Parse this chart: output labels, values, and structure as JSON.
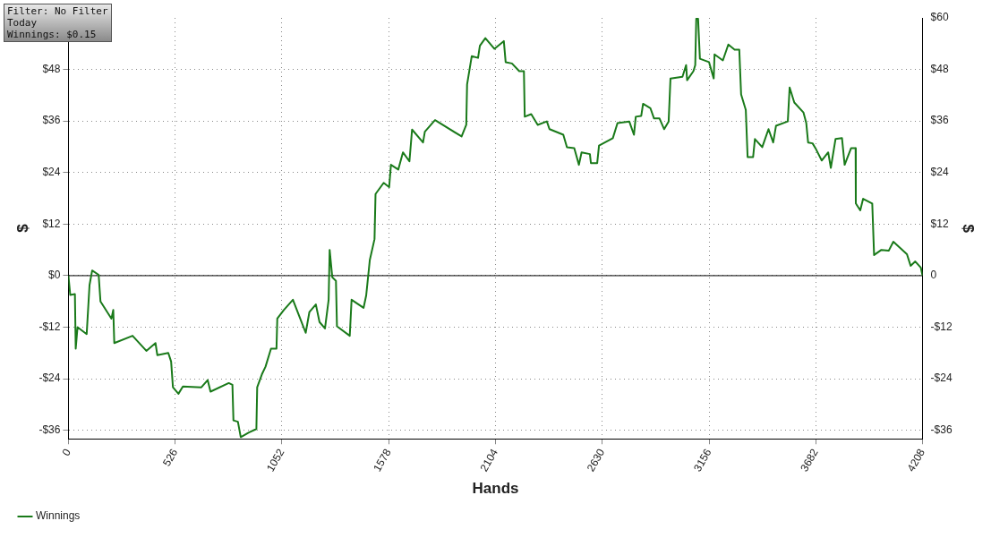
{
  "chart_data": {
    "type": "line",
    "xlabel": "Hands",
    "ylabel": "$",
    "y2label": "$",
    "annotations": [
      "Filter: No Filter",
      "Today",
      "Winnings: $0.15"
    ],
    "xlim": [
      0,
      4208
    ],
    "xticks": [
      0,
      526,
      1052,
      1578,
      2104,
      2630,
      3156,
      3682,
      4208
    ],
    "ylim": [
      -38,
      60
    ],
    "yticks": [
      {
        "value": -36,
        "label": "-$36"
      },
      {
        "value": -24,
        "label": "-$24"
      },
      {
        "value": -12,
        "label": "-$12"
      },
      {
        "value": 0,
        "label": "$0"
      },
      {
        "value": 12,
        "label": "$12"
      },
      {
        "value": 24,
        "label": "$24"
      },
      {
        "value": 36,
        "label": "$36"
      },
      {
        "value": 48,
        "label": "$48"
      }
    ],
    "y2lim": [
      -38,
      60
    ],
    "y2ticks": [
      {
        "value": -36,
        "label": "-$36"
      },
      {
        "value": -24,
        "label": "-$24"
      },
      {
        "value": -12,
        "label": "-$12"
      },
      {
        "value": 0,
        "label": "0"
      },
      {
        "value": 12,
        "label": "$12"
      },
      {
        "value": 24,
        "label": "$24"
      },
      {
        "value": 36,
        "label": "$36"
      },
      {
        "value": 48,
        "label": "$48"
      },
      {
        "value": 60,
        "label": "$60"
      }
    ],
    "grid": true,
    "legend": "bottom left",
    "marker": "none",
    "line_style": "solid",
    "ref_lines": [
      {
        "axis": "y",
        "value": 0,
        "color": "#000000"
      }
    ],
    "series": [
      {
        "name": "Winnings",
        "color": "#1a7a1a",
        "x": [
          0,
          5,
          9,
          32,
          36,
          45,
          90,
          104,
          117,
          149,
          158,
          212,
          221,
          226,
          316,
          384,
          429,
          438,
          492,
          506,
          515,
          542,
          564,
          655,
          686,
          700,
          790,
          808,
          813,
          835,
          849,
          889,
          926,
          930,
          953,
          971,
          998,
          1025,
          1029,
          1061,
          1106,
          1138,
          1169,
          1187,
          1219,
          1237,
          1264,
          1282,
          1287,
          1300,
          1318,
          1323,
          1386,
          1395,
          1454,
          1467,
          1485,
          1508,
          1513,
          1553,
          1580,
          1589,
          1625,
          1648,
          1680,
          1693,
          1747,
          1756,
          1806,
          1937,
          1960,
          1964,
          1987,
          2018,
          2027,
          2054,
          2099,
          2145,
          2154,
          2185,
          2221,
          2244,
          2248,
          2280,
          2312,
          2357,
          2370,
          2438,
          2456,
          2492,
          2515,
          2528,
          2569,
          2574,
          2605,
          2614,
          2682,
          2705,
          2763,
          2786,
          2795,
          2822,
          2831,
          2867,
          2885,
          2912,
          2935,
          2957,
          2966,
          3025,
          3043,
          3048,
          3079,
          3088,
          3093,
          3102,
          3111,
          3156,
          3179,
          3183,
          3224,
          3251,
          3282,
          3305,
          3314,
          3337,
          3346,
          3373,
          3382,
          3418,
          3449,
          3472,
          3486,
          3544,
          3553,
          3576,
          3621,
          3635,
          3644,
          3666,
          3680,
          3711,
          3743,
          3756,
          3779,
          3811,
          3824,
          3856,
          3878,
          3879,
          3901,
          3915,
          3960,
          3969,
          4005,
          4041,
          4064,
          4131,
          4149,
          4172,
          4199,
          4208
        ],
        "values": [
          0,
          -2.5,
          -4.5,
          -4.3,
          -17,
          -12,
          -13.6,
          -2.2,
          1.2,
          0.2,
          -6,
          -10,
          -8,
          -15.7,
          -14,
          -17.5,
          -15.7,
          -18.5,
          -18,
          -20,
          -26,
          -27.5,
          -25.8,
          -26,
          -24.3,
          -27,
          -25,
          -25.4,
          -33.7,
          -34,
          -37.6,
          -36.5,
          -35.7,
          -26,
          -23,
          -21.2,
          -17,
          -17,
          -10,
          -8,
          -5.6,
          -9.5,
          -13.3,
          -8.5,
          -6.7,
          -10.8,
          -12.3,
          -5.6,
          6,
          -0.4,
          -1.2,
          -11.8,
          -14,
          -5.6,
          -7.5,
          -4.6,
          3.7,
          8.5,
          19,
          21.6,
          20.6,
          25.8,
          24.7,
          28.7,
          26.6,
          34,
          31,
          33.5,
          36.2,
          32.4,
          35.1,
          44.5,
          51.1,
          50.7,
          53.5,
          55.3,
          52.8,
          54.6,
          49.7,
          49.4,
          47.6,
          47.6,
          37,
          37.6,
          35.1,
          35.9,
          34.1,
          32.8,
          29.9,
          29.7,
          25.8,
          28.7,
          28.3,
          26.2,
          26.2,
          30.3,
          32,
          35.5,
          35.9,
          32.8,
          37,
          37.2,
          40,
          39,
          36.6,
          36.6,
          34.1,
          35.9,
          45.9,
          46.3,
          49,
          45.5,
          47.6,
          49,
          59.8,
          59.8,
          50.5,
          49.7,
          45.9,
          51.5,
          50.1,
          53.8,
          52.6,
          52.6,
          42.2,
          38.6,
          27.6,
          27.6,
          31.8,
          29.9,
          34.1,
          31,
          34.9,
          35.9,
          43.8,
          40.3,
          38,
          35.5,
          31,
          30.8,
          29.7,
          26.8,
          28.7,
          25.1,
          31.8,
          32,
          25.8,
          29.7,
          29.7,
          16.8,
          15.2,
          17.9,
          16.8,
          4.8,
          6,
          5.8,
          7.9,
          5,
          2.3,
          3.3,
          1.9,
          0
        ]
      }
    ]
  }
}
